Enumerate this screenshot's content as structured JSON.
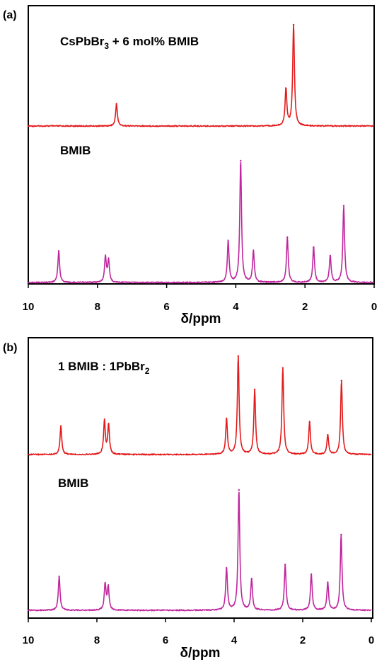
{
  "colors": {
    "red": "#e41a1c",
    "magenta": "#c0269e"
  },
  "chart_data": [
    {
      "type": "line",
      "panel_label": "(a)",
      "xlabel": "δ/ppm",
      "xlim": [
        10,
        0
      ],
      "reversed_x": true,
      "xticks": [
        "10",
        "8",
        "6",
        "4",
        "2",
        "0"
      ],
      "series": [
        {
          "name_main": "CsPbBr",
          "name_sub": "3",
          "name_rest": " + 6 mol% BMIB",
          "color": "red",
          "peaks": [
            {
              "x": 7.45,
              "y": 0.22
            },
            {
              "x": 2.55,
              "y": 0.37
            },
            {
              "x": 2.33,
              "y": 1.0
            }
          ]
        },
        {
          "name": "BMIB",
          "color": "magenta",
          "peaks": [
            {
              "x": 9.12,
              "y": 0.26
            },
            {
              "x": 7.77,
              "y": 0.21
            },
            {
              "x": 7.68,
              "y": 0.18
            },
            {
              "x": 4.22,
              "y": 0.34
            },
            {
              "x": 3.86,
              "y": 1.0
            },
            {
              "x": 3.49,
              "y": 0.26
            },
            {
              "x": 2.51,
              "y": 0.37
            },
            {
              "x": 1.75,
              "y": 0.29
            },
            {
              "x": 1.27,
              "y": 0.22
            },
            {
              "x": 0.88,
              "y": 0.63
            }
          ]
        }
      ]
    },
    {
      "type": "line",
      "panel_label": "(b)",
      "xlabel": "δ/ppm",
      "xlim": [
        10,
        0
      ],
      "reversed_x": true,
      "xticks": [
        "10",
        "8",
        "6",
        "4",
        "2",
        "0"
      ],
      "series": [
        {
          "name_main": "1 BMIB : 1PbBr",
          "name_sub": "2",
          "name_rest": "",
          "color": "red",
          "peaks": [
            {
              "x": 9.05,
              "y": 0.29
            },
            {
              "x": 7.78,
              "y": 0.34
            },
            {
              "x": 7.66,
              "y": 0.3
            },
            {
              "x": 4.22,
              "y": 0.36
            },
            {
              "x": 3.88,
              "y": 1.0
            },
            {
              "x": 3.4,
              "y": 0.66
            },
            {
              "x": 2.58,
              "y": 0.88
            },
            {
              "x": 1.8,
              "y": 0.33
            },
            {
              "x": 1.27,
              "y": 0.2
            },
            {
              "x": 0.87,
              "y": 0.75
            }
          ]
        },
        {
          "name": "BMIB",
          "color": "magenta",
          "peaks": [
            {
              "x": 9.1,
              "y": 0.28
            },
            {
              "x": 7.76,
              "y": 0.22
            },
            {
              "x": 7.67,
              "y": 0.19
            },
            {
              "x": 4.22,
              "y": 0.35
            },
            {
              "x": 3.86,
              "y": 1.0
            },
            {
              "x": 3.49,
              "y": 0.26
            },
            {
              "x": 2.51,
              "y": 0.38
            },
            {
              "x": 1.75,
              "y": 0.3
            },
            {
              "x": 1.27,
              "y": 0.23
            },
            {
              "x": 0.88,
              "y": 0.63
            }
          ]
        }
      ]
    }
  ]
}
